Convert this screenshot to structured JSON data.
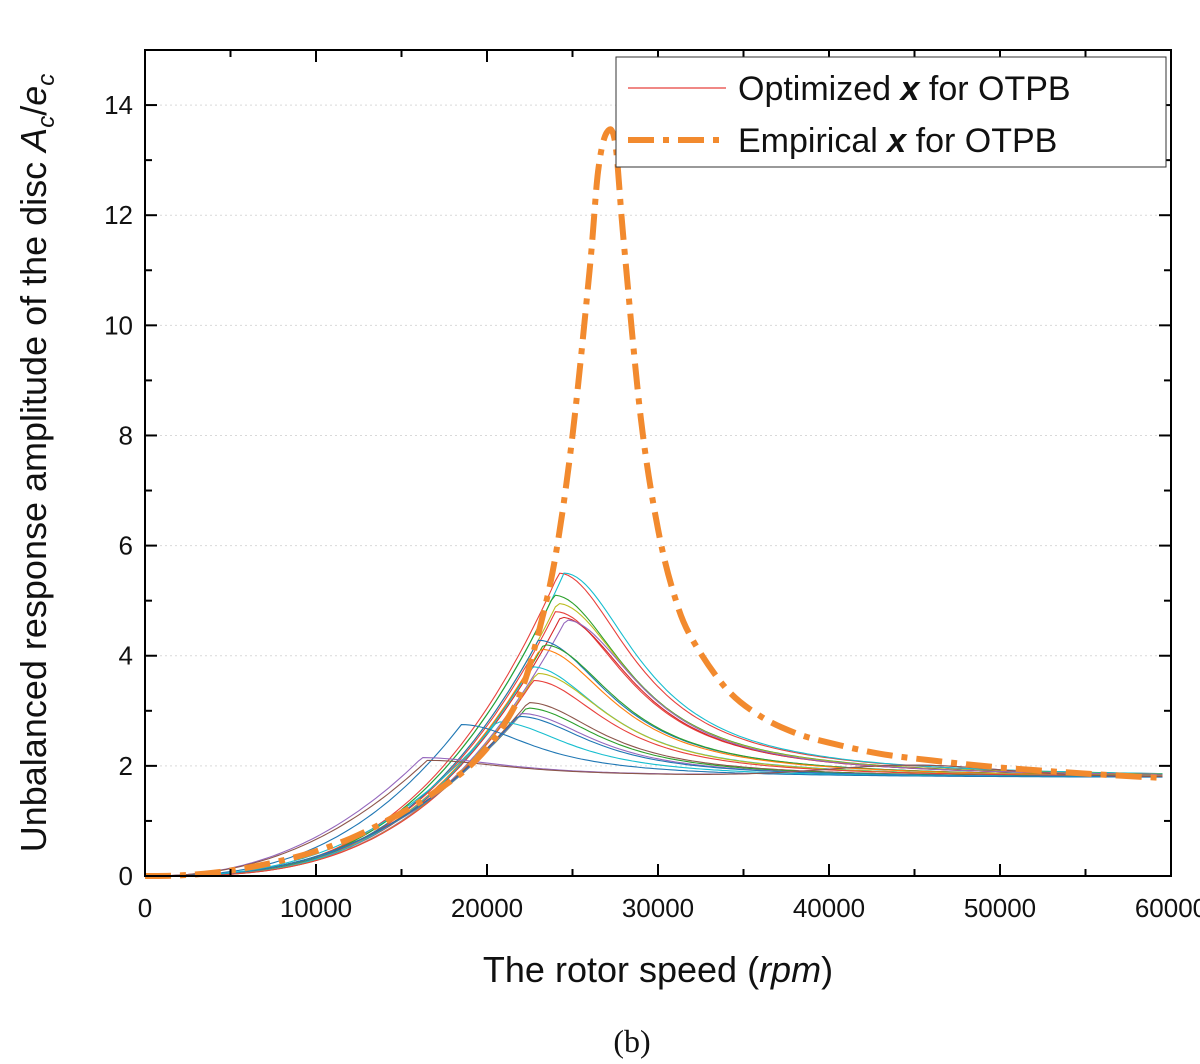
{
  "chart_data": {
    "type": "line",
    "title": "",
    "xlabel": "The rotor speed (rpm)",
    "xlabel_parts": [
      "The rotor speed (",
      "rpm",
      ")"
    ],
    "ylabel": "Unbalanced response amplitude of the disc Ac/ec",
    "ylabel_parts": [
      "Unbalanced response amplitude of the disc ",
      "A",
      "c",
      "/",
      "e",
      "c"
    ],
    "xlim": [
      0,
      60000
    ],
    "ylim": [
      0,
      15
    ],
    "xticks": [
      0,
      10000,
      20000,
      30000,
      40000,
      50000,
      60000
    ],
    "xtick_labels": [
      "0",
      "10000",
      "20000",
      "30000",
      "40000",
      "50000",
      "60000"
    ],
    "yticks": [
      0,
      2,
      4,
      6,
      8,
      10,
      12,
      14
    ],
    "ytick_labels": [
      "0",
      "2",
      "4",
      "6",
      "8",
      "10",
      "12",
      "14"
    ],
    "grid": "horizontal dotted",
    "legend_position": "top-right",
    "legend": [
      {
        "parts": [
          "Optimized ",
          "x",
          " for OTPB"
        ],
        "style": "thin solid",
        "color": "#e8413c"
      },
      {
        "parts": [
          "Empirical ",
          "x",
          " for OTPB"
        ],
        "style": "thick dash-dot",
        "color": "#f28a2e"
      }
    ],
    "caption": "(b)",
    "empirical": {
      "name": "Empirical x for OTPB",
      "color": "#f28a2e",
      "x": [
        0,
        2000,
        4000,
        6000,
        8000,
        10000,
        12000,
        14000,
        16000,
        18000,
        19000,
        20000,
        21000,
        22000,
        23000,
        24000,
        25000,
        26000,
        26500,
        27000,
        27500,
        28000,
        29000,
        30000,
        31000,
        32000,
        34000,
        36000,
        38000,
        40000,
        43000,
        46000,
        50000,
        55000,
        59500
      ],
      "y": [
        0,
        0.01,
        0.06,
        0.15,
        0.28,
        0.45,
        0.68,
        0.98,
        1.33,
        1.75,
        2.0,
        2.32,
        2.75,
        3.35,
        4.4,
        5.8,
        8.0,
        11.0,
        12.8,
        13.5,
        13.3,
        11.5,
        8.3,
        6.3,
        5.05,
        4.3,
        3.4,
        2.9,
        2.6,
        2.42,
        2.22,
        2.1,
        1.97,
        1.86,
        1.78
      ]
    },
    "optimized_series": [
      {
        "name": "opt-1",
        "color": "#e8413c",
        "peak_x": 24200,
        "peak_y": 5.5
      },
      {
        "name": "opt-2",
        "color": "#17becf",
        "peak_x": 24500,
        "peak_y": 5.5
      },
      {
        "name": "opt-3",
        "color": "#2ca02c",
        "peak_x": 23900,
        "peak_y": 5.1
      },
      {
        "name": "opt-4",
        "color": "#bcbd22",
        "peak_x": 24100,
        "peak_y": 4.95
      },
      {
        "name": "opt-5",
        "color": "#e8413c",
        "peak_x": 24000,
        "peak_y": 4.8
      },
      {
        "name": "opt-6",
        "color": "#d62728",
        "peak_x": 24300,
        "peak_y": 4.7
      },
      {
        "name": "opt-7",
        "color": "#9467bd",
        "peak_x": 24600,
        "peak_y": 4.65
      },
      {
        "name": "opt-8",
        "color": "#1f77b4",
        "peak_x": 23000,
        "peak_y": 4.28
      },
      {
        "name": "opt-9",
        "color": "#2ca02c",
        "peak_x": 23300,
        "peak_y": 4.2
      },
      {
        "name": "opt-10",
        "color": "#ff7f0e",
        "peak_x": 23100,
        "peak_y": 4.12
      },
      {
        "name": "opt-11",
        "color": "#17becf",
        "peak_x": 22600,
        "peak_y": 3.8
      },
      {
        "name": "opt-12",
        "color": "#bcbd22",
        "peak_x": 22900,
        "peak_y": 3.68
      },
      {
        "name": "opt-13",
        "color": "#e8413c",
        "peak_x": 22700,
        "peak_y": 3.55
      },
      {
        "name": "opt-14",
        "color": "#8c564b",
        "peak_x": 22400,
        "peak_y": 3.15
      },
      {
        "name": "opt-15",
        "color": "#2ca02c",
        "peak_x": 22300,
        "peak_y": 3.05
      },
      {
        "name": "opt-16",
        "color": "#9467bd",
        "peak_x": 22000,
        "peak_y": 2.95
      },
      {
        "name": "opt-17",
        "color": "#1f77b4",
        "peak_x": 21800,
        "peak_y": 2.9
      },
      {
        "name": "opt-18",
        "color": "#17becf",
        "peak_x": 20600,
        "peak_y": 2.8
      },
      {
        "name": "opt-19",
        "color": "#1f77b4",
        "peak_x": 18500,
        "peak_y": 2.75
      },
      {
        "name": "opt-20",
        "color": "#9467bd",
        "peak_x": 16200,
        "peak_y": 2.15
      },
      {
        "name": "opt-21",
        "color": "#8c564b",
        "peak_x": 16500,
        "peak_y": 2.1
      }
    ]
  }
}
